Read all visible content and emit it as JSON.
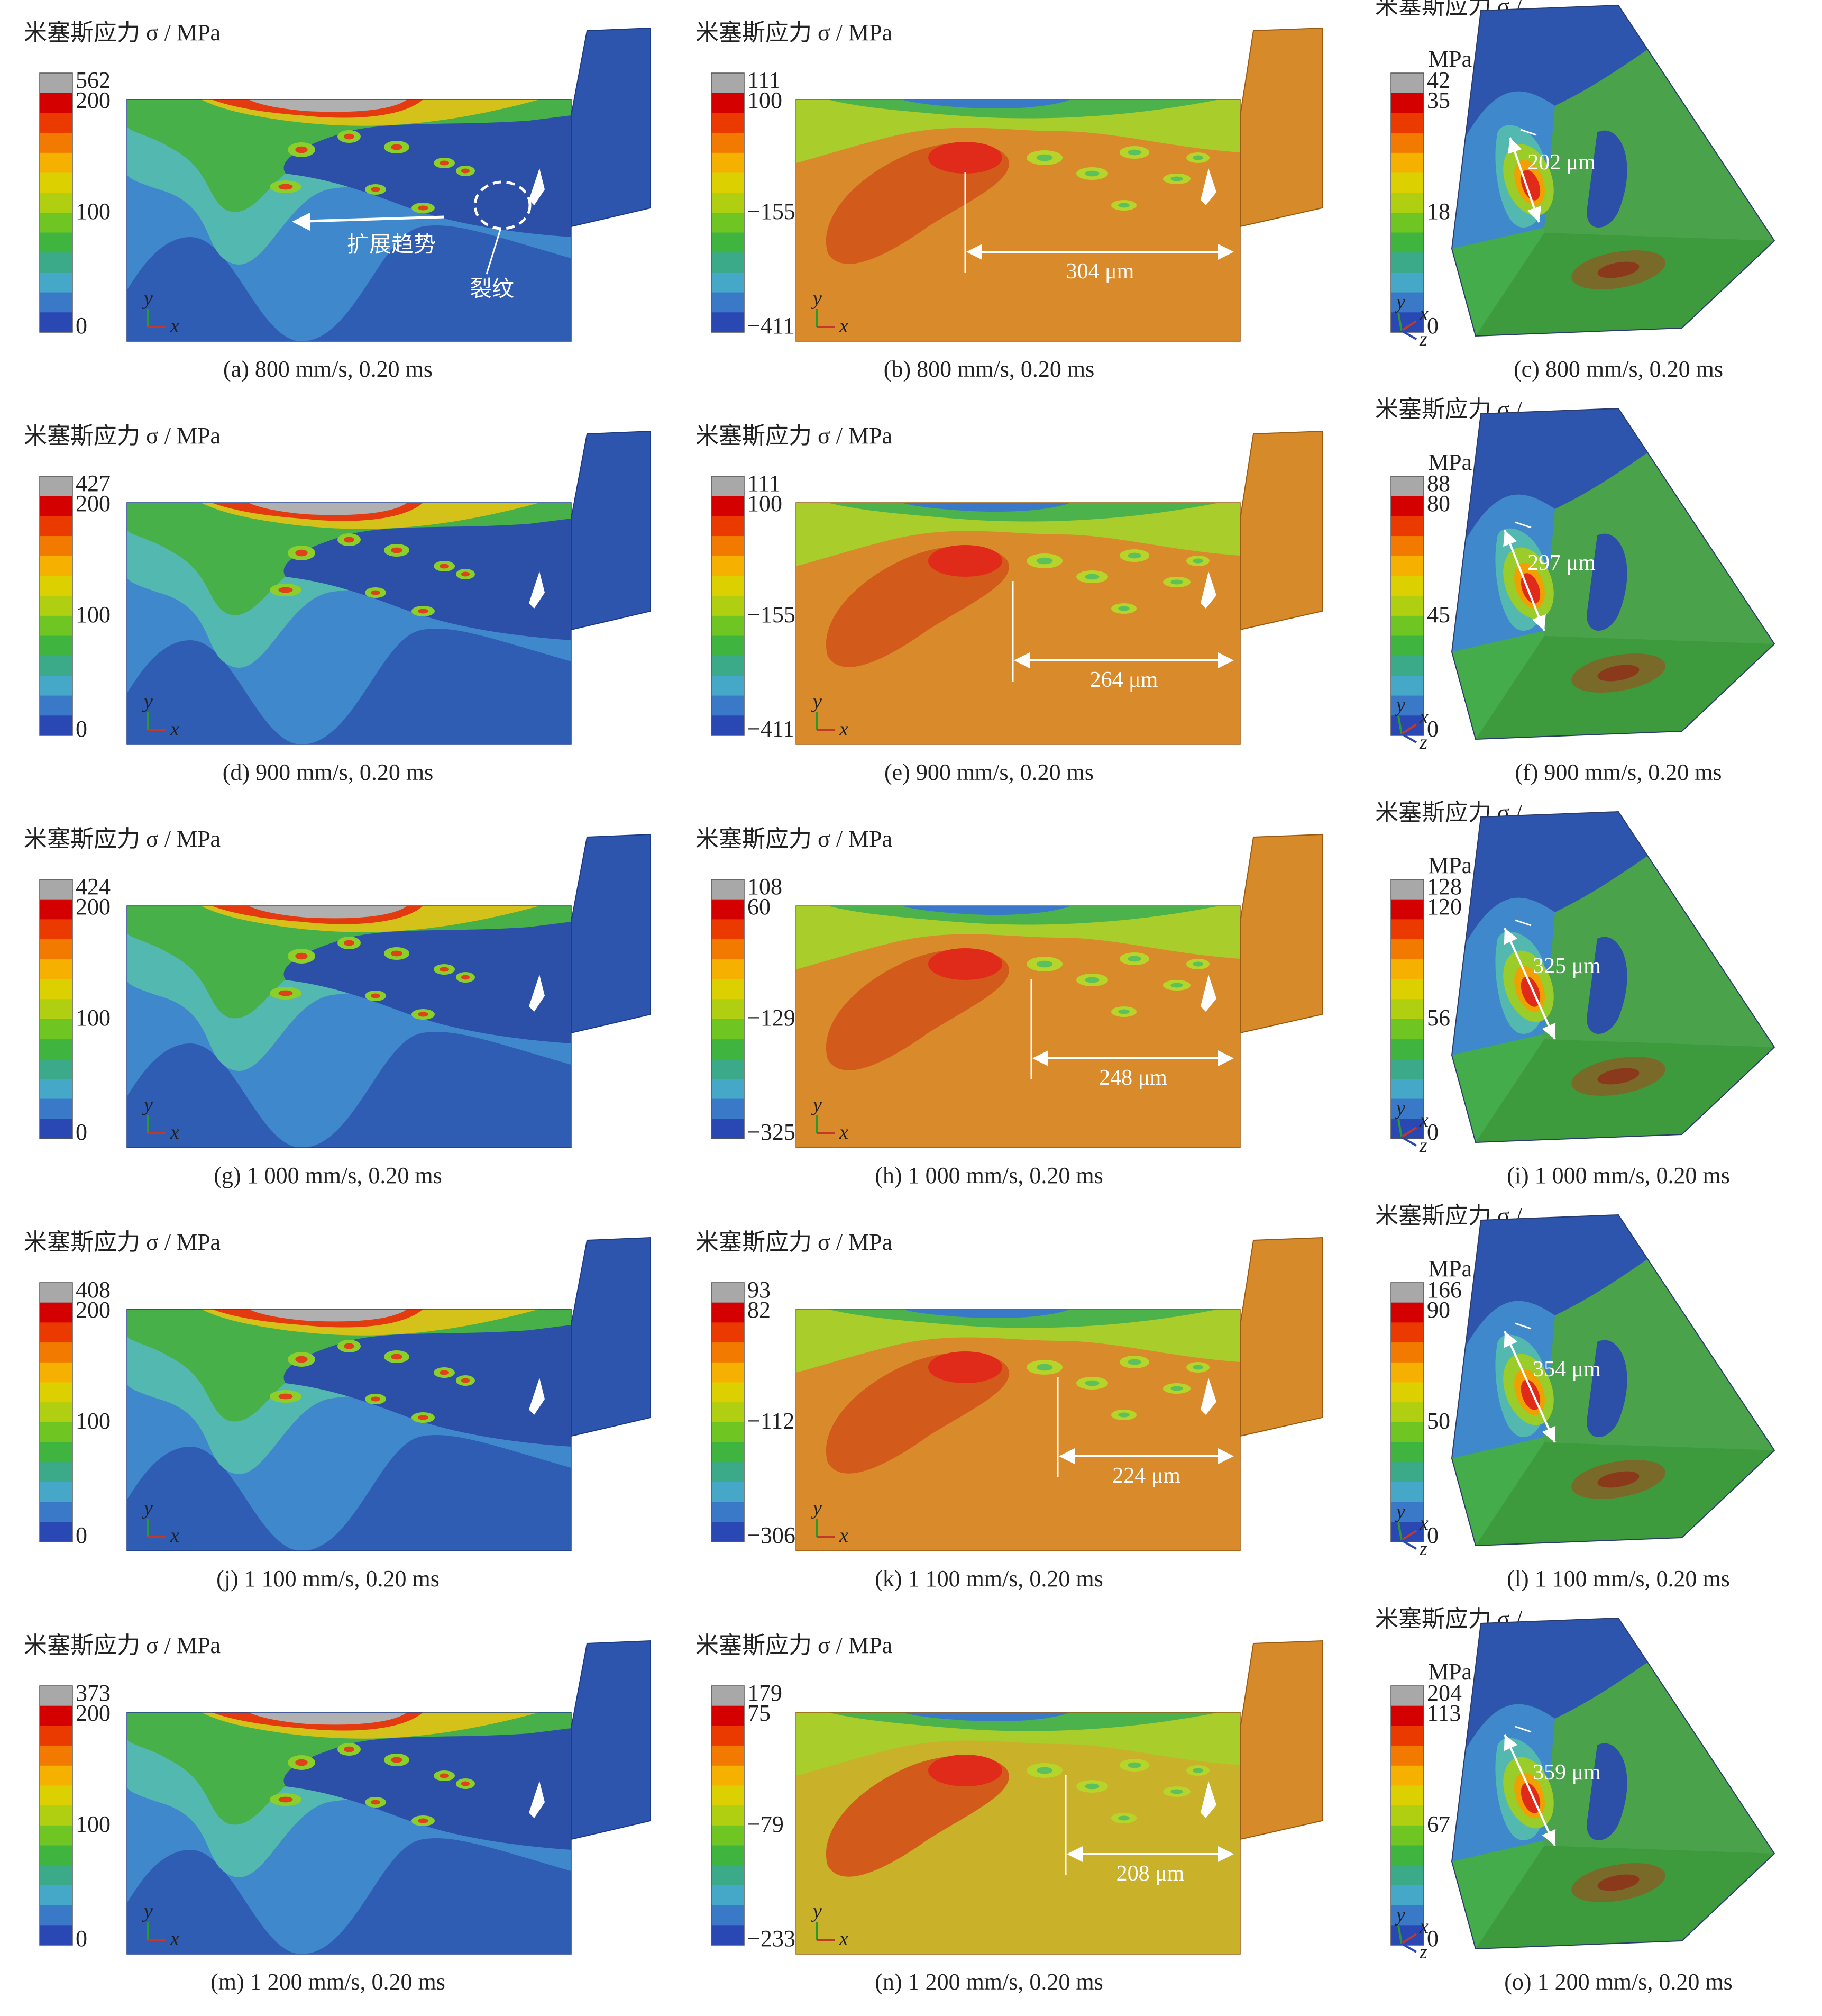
{
  "figure": {
    "panels": [
      {
        "id": "a",
        "type": "2d-a",
        "cb_title": [
          "米塞斯应力 σ / MPa"
        ],
        "cb_labels": [
          "562",
          "200",
          "100",
          "0"
        ],
        "caption": "(a) 800 mm/s, 0.20 ms",
        "annotations": [
          "扩展趋势",
          "裂纹"
        ]
      },
      {
        "id": "b",
        "type": "2d-b",
        "cb_title": [
          "米塞斯应力 σ / MPa"
        ],
        "cb_labels": [
          "111",
          "100",
          "−155",
          "−411"
        ],
        "caption": "(b) 800 mm/s, 0.20 ms",
        "distance": "304 μm"
      },
      {
        "id": "c",
        "type": "3d",
        "cb_title": [
          "米塞斯应力 σ /",
          "MPa"
        ],
        "cb_labels": [
          "42",
          "35",
          "18",
          "0"
        ],
        "caption": "(c) 800 mm/s, 0.20 ms",
        "distance": "202 μm"
      },
      {
        "id": "d",
        "type": "2d-a",
        "cb_title": [
          "米塞斯应力 σ / MPa"
        ],
        "cb_labels": [
          "427",
          "200",
          "100",
          "0"
        ],
        "caption": "(d) 900 mm/s, 0.20 ms"
      },
      {
        "id": "e",
        "type": "2d-b",
        "cb_title": [
          "米塞斯应力 σ / MPa"
        ],
        "cb_labels": [
          "111",
          "100",
          "−155",
          "−411"
        ],
        "caption": "(e) 900 mm/s, 0.20 ms",
        "distance": "264 μm"
      },
      {
        "id": "f",
        "type": "3d",
        "cb_title": [
          "米塞斯应力 σ /",
          "MPa"
        ],
        "cb_labels": [
          "88",
          "80",
          "45",
          "0"
        ],
        "caption": "(f) 900 mm/s, 0.20 ms",
        "distance": "297 μm"
      },
      {
        "id": "g",
        "type": "2d-a",
        "cb_title": [
          "米塞斯应力 σ / MPa"
        ],
        "cb_labels": [
          "424",
          "200",
          "100",
          "0"
        ],
        "caption": "(g) 1 000 mm/s, 0.20 ms"
      },
      {
        "id": "h",
        "type": "2d-b",
        "cb_title": [
          "米塞斯应力 σ / MPa"
        ],
        "cb_labels": [
          "108",
          "60",
          "−129",
          "−325"
        ],
        "caption": "(h) 1 000 mm/s, 0.20 ms",
        "distance": "248 μm"
      },
      {
        "id": "i",
        "type": "3d",
        "cb_title": [
          "米塞斯应力 σ /",
          "MPa"
        ],
        "cb_labels": [
          "128",
          "120",
          "56",
          "0"
        ],
        "caption": "(i) 1 000 mm/s, 0.20 ms",
        "distance": "325 μm"
      },
      {
        "id": "j",
        "type": "2d-a",
        "cb_title": [
          "米塞斯应力 σ / MPa"
        ],
        "cb_labels": [
          "408",
          "200",
          "100",
          "0"
        ],
        "caption": "(j) 1 100 mm/s, 0.20 ms"
      },
      {
        "id": "k",
        "type": "2d-b",
        "cb_title": [
          "米塞斯应力 σ / MPa"
        ],
        "cb_labels": [
          "93",
          "82",
          "−112",
          "−306"
        ],
        "caption": "(k) 1 100 mm/s, 0.20 ms",
        "distance": "224 μm"
      },
      {
        "id": "l",
        "type": "3d",
        "cb_title": [
          "米塞斯应力 σ /",
          "MPa"
        ],
        "cb_labels": [
          "166",
          "90",
          "50",
          "0"
        ],
        "caption": "(l) 1 100 mm/s, 0.20 ms",
        "distance": "354 μm"
      },
      {
        "id": "m",
        "type": "2d-a",
        "cb_title": [
          "米塞斯应力 σ / MPa"
        ],
        "cb_labels": [
          "373",
          "200",
          "100",
          "0"
        ],
        "caption": "(m) 1 200 mm/s, 0.20 ms"
      },
      {
        "id": "n",
        "type": "2d-b",
        "cb_title": [
          "米塞斯应力 σ / MPa"
        ],
        "cb_labels": [
          "179",
          "75",
          "−79",
          "−233"
        ],
        "caption": "(n) 1 200 mm/s, 0.20 ms",
        "distance": "208 μm"
      },
      {
        "id": "o",
        "type": "3d",
        "cb_title": [
          "米塞斯应力 σ /",
          "MPa"
        ],
        "cb_labels": [
          "204",
          "113",
          "67",
          "0"
        ],
        "caption": "(o) 1 200 mm/s, 0.20 ms",
        "distance": "359 μm"
      }
    ],
    "axis_letters": {
      "x": "x",
      "y": "y",
      "z": "z"
    }
  }
}
